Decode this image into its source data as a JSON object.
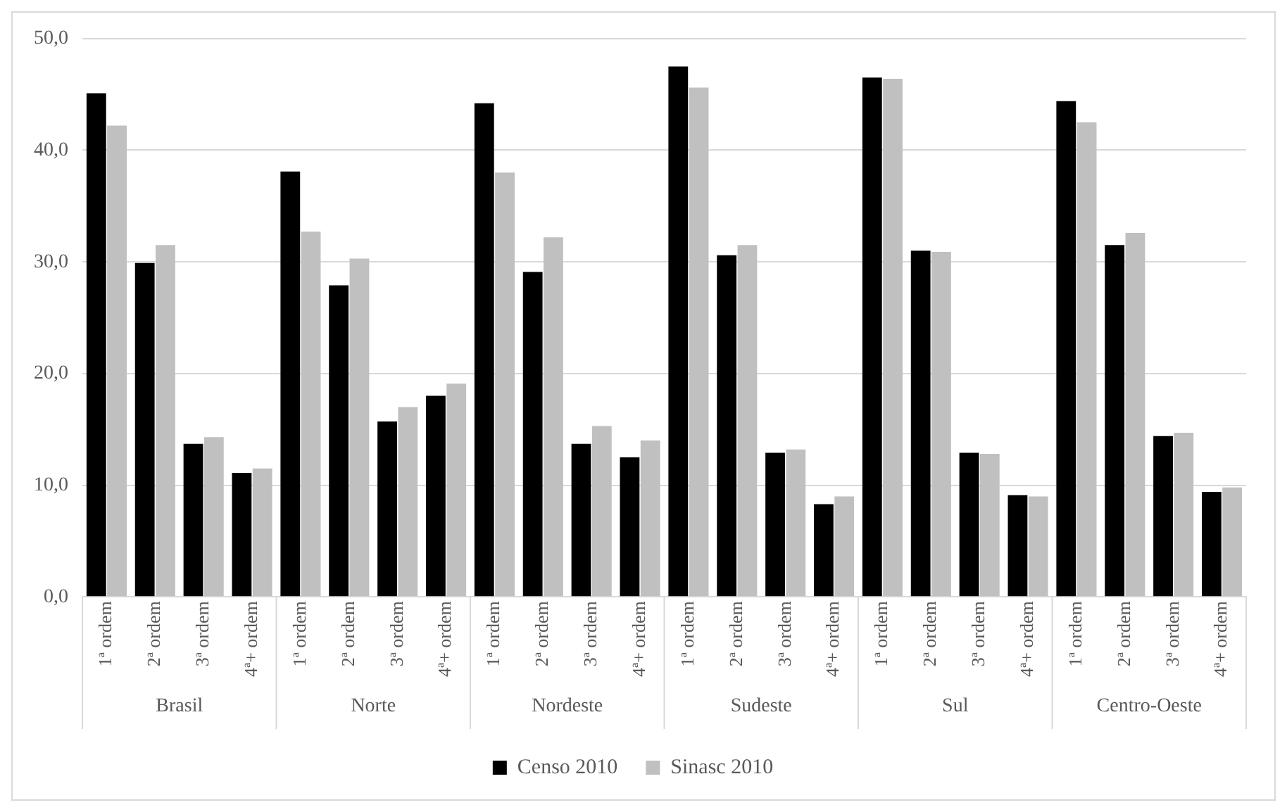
{
  "chart_data": {
    "type": "bar",
    "categories": [
      "1ª ordem",
      "2ª ordem",
      "3ª ordem",
      "4ª+ ordem",
      "1ª ordem",
      "2ª ordem",
      "3ª ordem",
      "4ª+ ordem",
      "1ª ordem",
      "2ª ordem",
      "3ª ordem",
      "4ª+ ordem",
      "1ª ordem",
      "2ª ordem",
      "3ª ordem",
      "4ª+ ordem",
      "1ª ordem",
      "2ª ordem",
      "3ª ordem",
      "4ª+ ordem",
      "1ª ordem",
      "2ª ordem",
      "3ª ordem",
      "4ª+ ordem"
    ],
    "annotations": [
      "Brasil",
      "Norte",
      "Nordeste",
      "Sudeste",
      "Sul",
      "Centro-Oeste"
    ],
    "series": [
      {
        "name": "Censo 2010",
        "color": "#000000",
        "values": [
          45.1,
          29.9,
          13.7,
          11.1,
          38.1,
          27.9,
          15.7,
          18.0,
          44.2,
          29.1,
          13.7,
          12.5,
          47.5,
          30.6,
          12.9,
          8.3,
          46.5,
          31.0,
          12.9,
          9.1,
          44.4,
          31.5,
          14.4,
          9.4
        ]
      },
      {
        "name": "Sinasc 2010",
        "color": "#c0c0c0",
        "values": [
          42.2,
          31.5,
          14.3,
          11.5,
          32.7,
          30.3,
          17.0,
          19.1,
          38.0,
          32.2,
          15.3,
          14.0,
          45.6,
          31.5,
          13.2,
          9.0,
          46.4,
          30.9,
          12.8,
          9.0,
          42.5,
          32.6,
          14.7,
          9.8
        ]
      }
    ],
    "ylim": [
      0,
      50
    ],
    "yticks": [
      {
        "value": 0,
        "label": "0,0"
      },
      {
        "value": 10,
        "label": "10,0"
      },
      {
        "value": 20,
        "label": "20,0"
      },
      {
        "value": 30,
        "label": "30,0"
      },
      {
        "value": 40,
        "label": "40,0"
      },
      {
        "value": 50,
        "label": "50,0"
      }
    ],
    "grid": "y",
    "legend": "bottom"
  }
}
